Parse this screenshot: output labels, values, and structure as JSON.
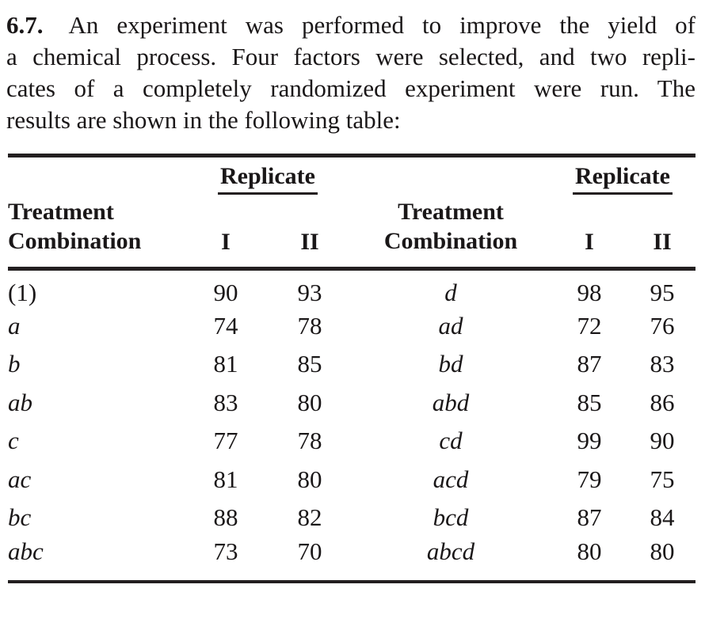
{
  "problem": {
    "number": "6.7.",
    "lines": [
      "An experiment was performed to improve the yield of",
      "a chemical process. Four factors were selected, and two repli-",
      "cates of a completely randomized experiment were run. The",
      "results are shown in the following table:"
    ]
  },
  "table": {
    "replicate_label": "Replicate",
    "treatment_header": {
      "line1": "Treatment",
      "line2": "Combination"
    },
    "rep_cols": {
      "one": "I",
      "two": "II"
    },
    "rows": [
      {
        "l_tc": "(1)",
        "l_i": "90",
        "l_ii": "93",
        "r_tc": "d",
        "r_i": "98",
        "r_ii": "95"
      },
      {
        "l_tc": "a",
        "l_i": "74",
        "l_ii": "78",
        "r_tc": "ad",
        "r_i": "72",
        "r_ii": "76"
      },
      {
        "l_tc": "b",
        "l_i": "81",
        "l_ii": "85",
        "r_tc": "bd",
        "r_i": "87",
        "r_ii": "83"
      },
      {
        "l_tc": "ab",
        "l_i": "83",
        "l_ii": "80",
        "r_tc": "abd",
        "r_i": "85",
        "r_ii": "86"
      },
      {
        "l_tc": "c",
        "l_i": "77",
        "l_ii": "78",
        "r_tc": "cd",
        "r_i": "99",
        "r_ii": "90"
      },
      {
        "l_tc": "ac",
        "l_i": "81",
        "l_ii": "80",
        "r_tc": "acd",
        "r_i": "79",
        "r_ii": "75"
      },
      {
        "l_tc": "bc",
        "l_i": "88",
        "l_ii": "82",
        "r_tc": "bcd",
        "r_i": "87",
        "r_ii": "84"
      },
      {
        "l_tc": "abc",
        "l_i": "73",
        "l_ii": "70",
        "r_tc": "abcd",
        "r_i": "80",
        "r_ii": "80"
      }
    ]
  },
  "colors": {
    "text": "#1a1718",
    "rule": "#231f20",
    "background": "#ffffff"
  }
}
